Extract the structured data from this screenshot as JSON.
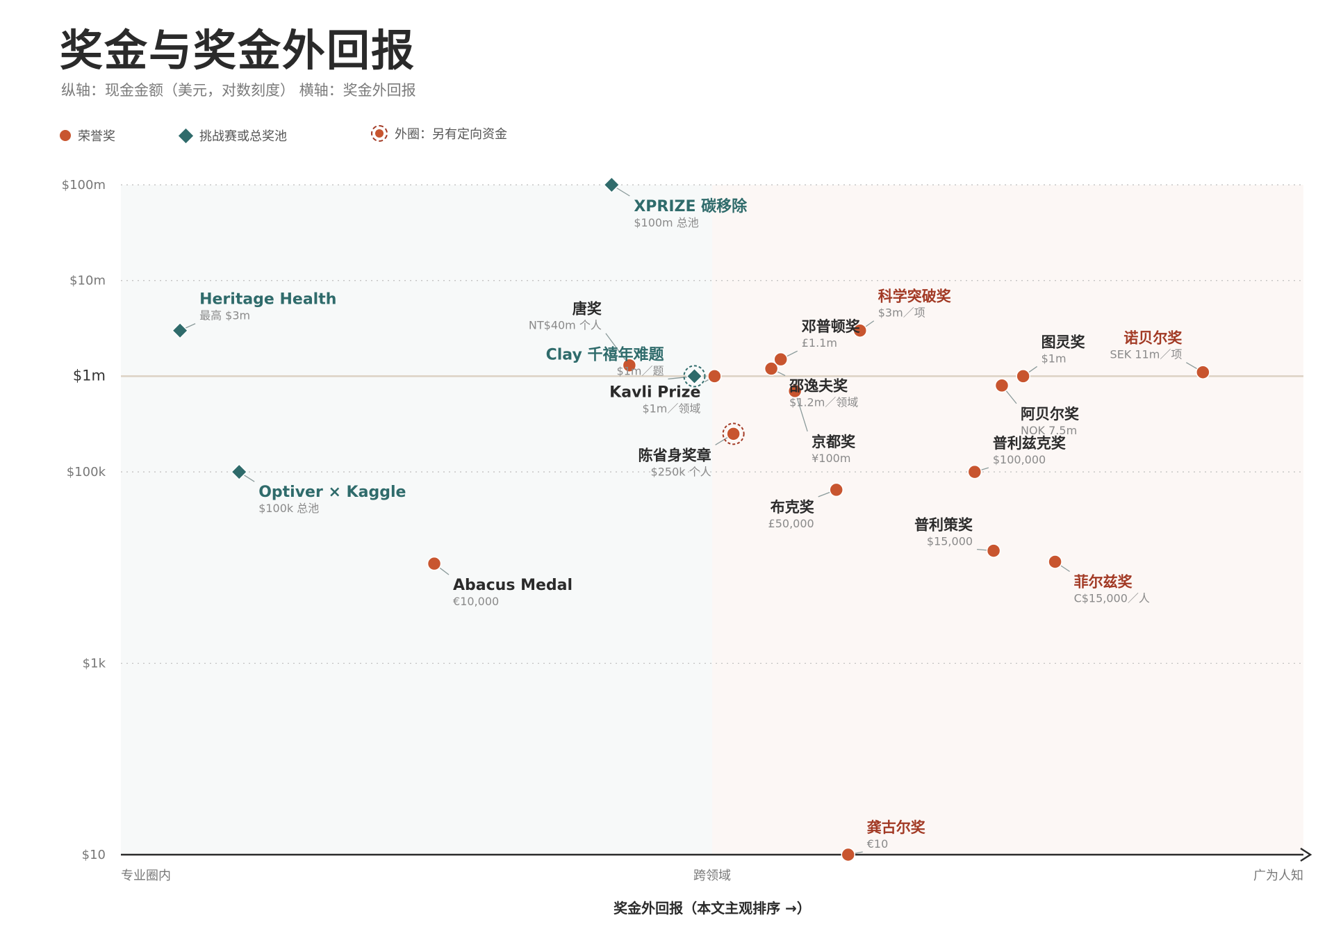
{
  "page": {
    "title": "奖金与奖金外回报",
    "subtitle": "纵轴：现金金额（美元，对数刻度）  横轴：奖金外回报"
  },
  "legend": [
    {
      "label": "荣誉奖",
      "shape": "circle"
    },
    {
      "label": "挑战赛或总奖池",
      "shape": "diamond"
    },
    {
      "label": "外圈：另有定向资金",
      "shape": "ring"
    }
  ],
  "colors": {
    "honor": "#c8552f",
    "challenge": "#2f6b6b",
    "highlight_label": "#a23a25",
    "challenge_label": "#2f6b6b",
    "axis": "#2b2b2b",
    "grid": "#bdbdbd",
    "ref_line": "#dcd2c4"
  },
  "chart_data": {
    "type": "scatter",
    "title": "奖金与奖金外回报",
    "xlabel": "奖金外回报（本文主观排序 →）",
    "ylabel": "",
    "xlim": [
      0,
      100
    ],
    "ylim": [
      10,
      100000000
    ],
    "yscale": "log",
    "yticks": [
      {
        "value": 10,
        "label": "$10"
      },
      {
        "value": 1000,
        "label": "$1k"
      },
      {
        "value": 100000,
        "label": "$100k"
      },
      {
        "value": 1000000,
        "label": "$1m"
      },
      {
        "value": 10000000,
        "label": "$10m"
      },
      {
        "value": 100000000,
        "label": "$100m"
      }
    ],
    "xticks": [
      {
        "value": 0,
        "label": "专业圈内"
      },
      {
        "value": 50,
        "label": "跨领域"
      },
      {
        "value": 100,
        "label": "广为人知"
      }
    ],
    "reference_line": 1000000,
    "grid": true,
    "points": [
      {
        "name": "XPRIZE 碳移除",
        "sub": "$100m 总池",
        "x": 41.5,
        "y": 100000000,
        "kind": "challenge",
        "style": "challenge",
        "ring": false
      },
      {
        "name": "Heritage Health",
        "sub": "最高 $3m",
        "x": 5,
        "y": 3000000,
        "kind": "challenge",
        "style": "challenge",
        "ring": false
      },
      {
        "name": "Optiver × Kaggle",
        "sub": "$100k 总池",
        "x": 10,
        "y": 100000,
        "kind": "challenge",
        "style": "challenge",
        "ring": false
      },
      {
        "name": "Clay 千禧年难题",
        "sub": "$1m／题",
        "x": 48.5,
        "y": 1000000,
        "kind": "challenge",
        "style": "challenge",
        "ring": true
      },
      {
        "name": "唐奖",
        "sub": "NT$40m 个人",
        "x": 43,
        "y": 1300000,
        "kind": "honor",
        "style": "normal",
        "ring": false
      },
      {
        "name": "Kavli Prize",
        "sub": "$1m／领域",
        "x": 50.2,
        "y": 1000000,
        "kind": "honor",
        "style": "normal",
        "ring": false
      },
      {
        "name": "陈省身奖章",
        "sub": "$250k 个人",
        "x": 51.8,
        "y": 250000,
        "kind": "honor",
        "style": "normal",
        "ring": true
      },
      {
        "name": "Abacus Medal",
        "sub": "€10,000",
        "x": 26.5,
        "y": 11000,
        "kind": "honor",
        "style": "normal",
        "ring": false
      },
      {
        "name": "邓普顿奖",
        "sub": "£1.1m",
        "x": 55.8,
        "y": 1500000,
        "kind": "honor",
        "style": "normal",
        "ring": false
      },
      {
        "name": "科学突破奖",
        "sub": "$3m／项",
        "x": 62.5,
        "y": 3000000,
        "kind": "honor",
        "style": "highlight",
        "ring": false
      },
      {
        "name": "邵逸夫奖",
        "sub": "$1.2m／领域",
        "x": 55,
        "y": 1200000,
        "kind": "honor",
        "style": "normal",
        "ring": false
      },
      {
        "name": "京都奖",
        "sub": "¥100m",
        "x": 57,
        "y": 700000,
        "kind": "honor",
        "style": "normal",
        "ring": false
      },
      {
        "name": "布克奖",
        "sub": "£50,000",
        "x": 60.5,
        "y": 65000,
        "kind": "honor",
        "style": "normal",
        "ring": false
      },
      {
        "name": "图灵奖",
        "sub": "$1m",
        "x": 76.3,
        "y": 1000000,
        "kind": "honor",
        "style": "normal",
        "ring": false
      },
      {
        "name": "阿贝尔奖",
        "sub": "NOK 7.5m",
        "x": 74.5,
        "y": 800000,
        "kind": "honor",
        "style": "normal",
        "ring": false
      },
      {
        "name": "普利兹克奖",
        "sub": "$100,000",
        "x": 72.2,
        "y": 100000,
        "kind": "honor",
        "style": "normal",
        "ring": false
      },
      {
        "name": "普利策奖",
        "sub": "$15,000",
        "x": 73.8,
        "y": 15000,
        "kind": "honor",
        "style": "normal",
        "ring": false
      },
      {
        "name": "菲尔兹奖",
        "sub": "C$15,000／人",
        "x": 79,
        "y": 11500,
        "kind": "honor",
        "style": "highlight",
        "ring": false
      },
      {
        "name": "诺贝尔奖",
        "sub": "SEK 11m／项",
        "x": 91.5,
        "y": 1100000,
        "kind": "honor",
        "style": "highlight",
        "ring": false
      },
      {
        "name": "龚古尔奖",
        "sub": "€10",
        "x": 61.5,
        "y": 10,
        "kind": "honor",
        "style": "highlight",
        "ring": false
      }
    ]
  }
}
